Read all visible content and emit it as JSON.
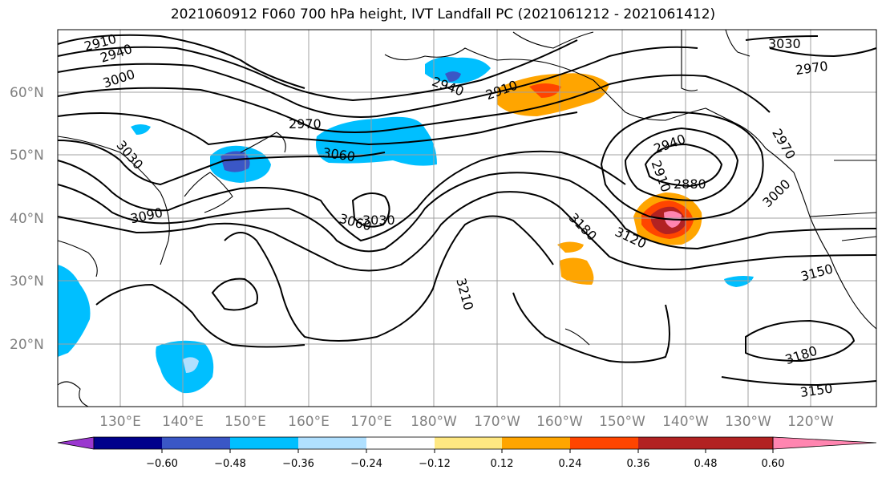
{
  "title": "2021060912 F060 700 hPa height, IVT Landfall PC (2021061212 - 2021061412)",
  "lat_labels": [
    "60°N",
    "50°N",
    "40°N",
    "30°N",
    "20°N"
  ],
  "lon_labels": [
    "130°E",
    "140°E",
    "150°E",
    "160°E",
    "170°E",
    "180°W",
    "170°W",
    "160°W",
    "150°W",
    "140°W",
    "130°W",
    "120°W"
  ],
  "contour_labels": [
    "2910",
    "2940",
    "3000",
    "2970",
    "3030",
    "3060",
    "3090",
    "3030",
    "3060",
    "2940",
    "2910",
    "3180",
    "3120",
    "3210",
    "2940",
    "2880",
    "2910",
    "3000",
    "2970",
    "3030",
    "3150",
    "3180",
    "3150",
    "2970"
  ],
  "colorbar": {
    "ticks": [
      "−0.60",
      "−0.48",
      "−0.36",
      "−0.24",
      "−0.12",
      "0.12",
      "0.24",
      "0.36",
      "0.48",
      "0.60"
    ],
    "colors": [
      "#9a37cf",
      "#00008b",
      "#3a57c6",
      "#00bfff",
      "#b0e0ff",
      "#ffffff",
      "#ffe882",
      "#ffa500",
      "#ff4500",
      "#b22222",
      "#ff85b0"
    ]
  },
  "colors": {
    "grid": "#a0a0a0",
    "contour": "#000000",
    "coast": "#000000"
  }
}
